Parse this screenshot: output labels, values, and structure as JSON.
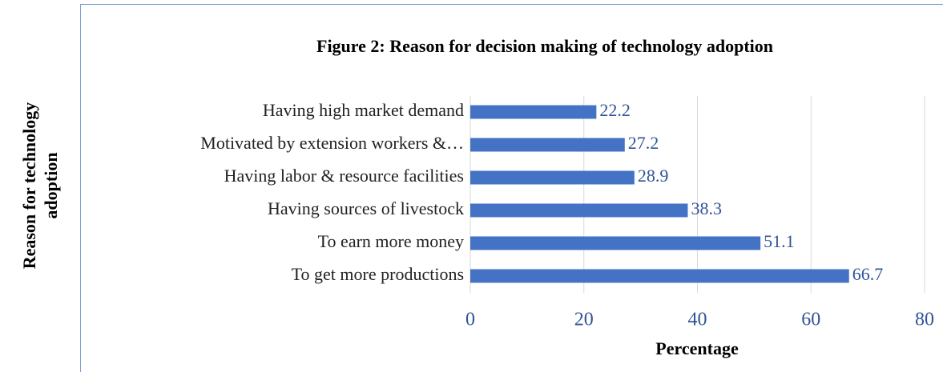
{
  "chart_data": {
    "type": "bar",
    "orientation": "horizontal",
    "title": "Figure 2: Reason for decision making of technology adoption",
    "xlabel": "Percentage",
    "ylabel": "Reason for technology adoption",
    "categories": [
      "Having high market demand",
      "Motivated by extension workers &…",
      "Having labor & resource facilities",
      "Having sources of livestock",
      "To earn more money",
      "To get more productions"
    ],
    "values": [
      22.2,
      27.2,
      28.9,
      38.3,
      51.1,
      66.7
    ],
    "color": "#4472c4",
    "xlim": [
      0,
      80
    ],
    "xticks": [
      0,
      20,
      40,
      60,
      80
    ],
    "grid": true
  }
}
